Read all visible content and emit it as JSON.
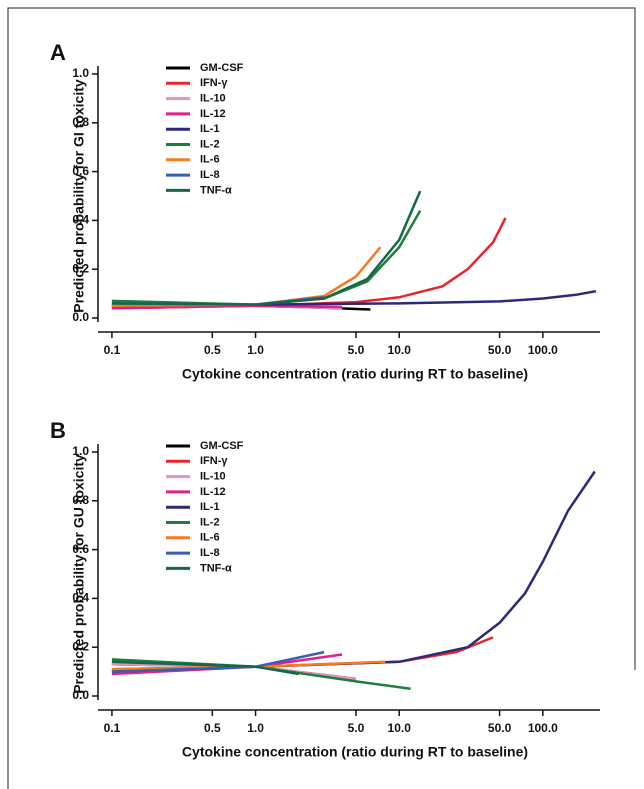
{
  "chart_data": [
    {
      "type": "line",
      "panel_label": "A",
      "xlabel": "Cytokine concentration (ratio during RT to baseline)",
      "ylabel": "Predicted probability for GI toxicity",
      "log_x": true,
      "legend": "upper left",
      "xlim": [
        0.08,
        250
      ],
      "ylim": [
        0,
        1
      ],
      "xticks": [
        0.1,
        0.5,
        {
          "value": 1,
          "label": "1.0"
        },
        {
          "value": 5,
          "label": "5.0"
        },
        {
          "value": 10,
          "label": "10.0"
        },
        {
          "value": 50,
          "label": "50.0"
        },
        {
          "value": 100,
          "label": "100.0"
        }
      ],
      "yticks": [
        {
          "value": 0,
          "label": "0.0"
        },
        0.2,
        0.4,
        0.6,
        0.8,
        {
          "value": 1,
          "label": "1.0"
        }
      ],
      "series": [
        {
          "name": "GM-CSF",
          "color": "#000000",
          "x": [
            0.1,
            1,
            3,
            6.3
          ],
          "values": [
            0.045,
            0.05,
            0.042,
            0.035
          ]
        },
        {
          "name": "IFN-γ",
          "color": "#e8252b",
          "x": [
            0.1,
            1,
            5,
            10,
            20,
            30,
            45,
            55
          ],
          "values": [
            0.04,
            0.05,
            0.065,
            0.085,
            0.13,
            0.2,
            0.31,
            0.41
          ]
        },
        {
          "name": "IL-10",
          "color": "#e58fc0",
          "x": [
            0.1,
            1,
            4
          ],
          "values": [
            0.06,
            0.05,
            0.04
          ]
        },
        {
          "name": "IL-12",
          "color": "#e0208c",
          "x": [
            0.1,
            1,
            4
          ],
          "values": [
            0.04,
            0.05,
            0.045
          ]
        },
        {
          "name": "IL-1",
          "color": "#2b2a7a",
          "x": [
            0.1,
            1,
            10,
            50,
            100,
            170,
            234
          ],
          "values": [
            0.05,
            0.055,
            0.06,
            0.068,
            0.08,
            0.095,
            0.11
          ]
        },
        {
          "name": "IL-2",
          "color": "#1e7d3a",
          "x": [
            0.1,
            1,
            3,
            6,
            10,
            14
          ],
          "values": [
            0.07,
            0.055,
            0.08,
            0.15,
            0.29,
            0.44
          ]
        },
        {
          "name": "IL-6",
          "color": "#f47b20",
          "x": [
            0.1,
            1,
            3,
            5,
            7.4
          ],
          "values": [
            0.05,
            0.055,
            0.09,
            0.17,
            0.29
          ]
        },
        {
          "name": "IL-8",
          "color": "#3b5fb0",
          "x": [
            0.1,
            1,
            3
          ],
          "values": [
            0.06,
            0.055,
            0.085
          ]
        },
        {
          "name": "TNF-α",
          "color": "#12694a",
          "x": [
            0.1,
            1,
            3,
            6,
            10,
            14
          ],
          "values": [
            0.06,
            0.055,
            0.08,
            0.16,
            0.32,
            0.52
          ]
        }
      ]
    },
    {
      "type": "line",
      "panel_label": "B",
      "xlabel": "Cytokine concentration (ratio during RT to baseline)",
      "ylabel": "Predicted probability for GU toxicity",
      "log_x": true,
      "legend": "upper left",
      "xlim": [
        0.08,
        250
      ],
      "ylim": [
        0,
        1
      ],
      "xticks": [
        0.1,
        0.5,
        {
          "value": 1,
          "label": "1.0"
        },
        {
          "value": 5,
          "label": "5.0"
        },
        {
          "value": 10,
          "label": "10.0"
        },
        {
          "value": 50,
          "label": "50.0"
        },
        {
          "value": 100,
          "label": "100.0"
        }
      ],
      "yticks": [
        {
          "value": 0,
          "label": "0.0"
        },
        0.2,
        0.4,
        0.6,
        0.8,
        {
          "value": 1,
          "label": "1.0"
        }
      ],
      "series": [
        {
          "name": "GM-CSF",
          "color": "#000000",
          "x": [
            0.1,
            1,
            5
          ],
          "values": [
            0.13,
            0.12,
            0.07
          ]
        },
        {
          "name": "IFN-γ",
          "color": "#e8252b",
          "x": [
            0.1,
            1,
            10,
            25,
            45
          ],
          "values": [
            0.11,
            0.12,
            0.14,
            0.18,
            0.24
          ]
        },
        {
          "name": "IL-10",
          "color": "#e58fc0",
          "x": [
            0.1,
            1,
            5
          ],
          "values": [
            0.13,
            0.12,
            0.07
          ]
        },
        {
          "name": "IL-12",
          "color": "#e0208c",
          "x": [
            0.1,
            1,
            4
          ],
          "values": [
            0.09,
            0.12,
            0.17
          ]
        },
        {
          "name": "IL-1",
          "color": "#2b2a7a",
          "x": [
            0.1,
            1,
            10,
            30,
            50,
            75,
            100,
            150,
            230
          ],
          "values": [
            0.1,
            0.12,
            0.14,
            0.2,
            0.3,
            0.42,
            0.55,
            0.76,
            0.92
          ]
        },
        {
          "name": "IL-2",
          "color": "#1e7d3a",
          "x": [
            0.1,
            1,
            5,
            12
          ],
          "values": [
            0.15,
            0.12,
            0.06,
            0.03
          ]
        },
        {
          "name": "IL-6",
          "color": "#f47b20",
          "x": [
            0.1,
            1,
            8
          ],
          "values": [
            0.11,
            0.12,
            0.14
          ]
        },
        {
          "name": "IL-8",
          "color": "#3b5fb0",
          "x": [
            0.1,
            1,
            3
          ],
          "values": [
            0.1,
            0.12,
            0.18
          ]
        },
        {
          "name": "TNF-α",
          "color": "#12694a",
          "x": [
            0.1,
            1,
            2
          ],
          "values": [
            0.14,
            0.12,
            0.09
          ]
        }
      ]
    }
  ]
}
